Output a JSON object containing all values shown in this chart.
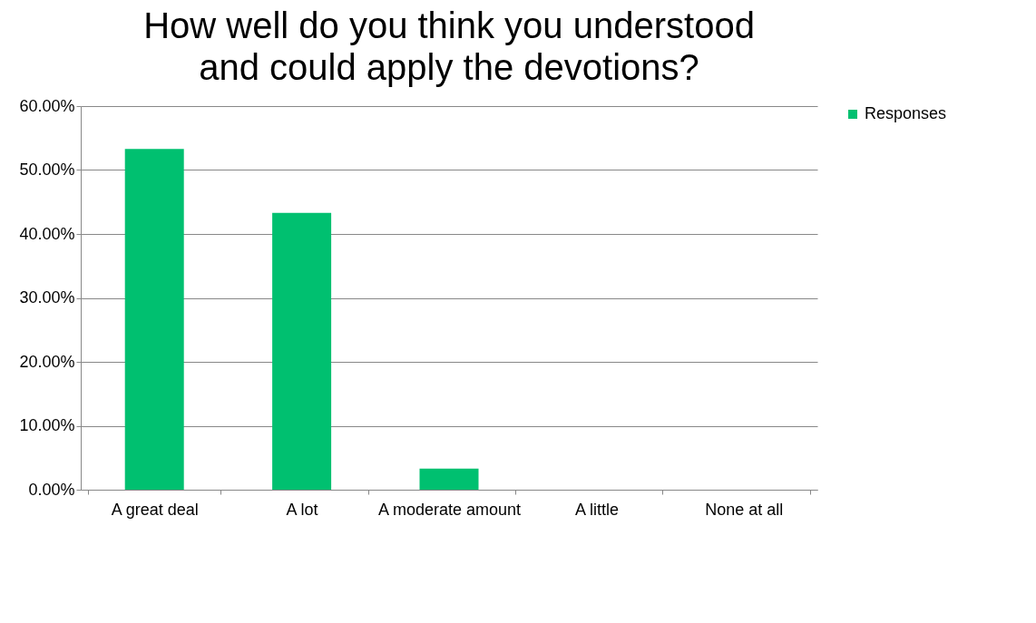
{
  "chart_data": {
    "type": "bar",
    "title": "How well do you think you understood and could apply the devotions?",
    "categories": [
      "A great deal",
      "A lot",
      "A moderate amount",
      "A little",
      "None at all"
    ],
    "series": [
      {
        "name": "Responses",
        "color": "#00c070",
        "values": [
          53.3,
          43.3,
          3.3,
          0,
          0
        ]
      }
    ],
    "ylim": [
      0,
      60
    ],
    "yticks": [
      {
        "value": 0,
        "label": "0.00%"
      },
      {
        "value": 10,
        "label": "10.00%"
      },
      {
        "value": 20,
        "label": "20.00%"
      },
      {
        "value": 30,
        "label": "30.00%"
      },
      {
        "value": 40,
        "label": "40.00%"
      },
      {
        "value": 50,
        "label": "50.00%"
      },
      {
        "value": 60,
        "label": "60.00%"
      }
    ],
    "grid": "y",
    "legend": "right"
  }
}
